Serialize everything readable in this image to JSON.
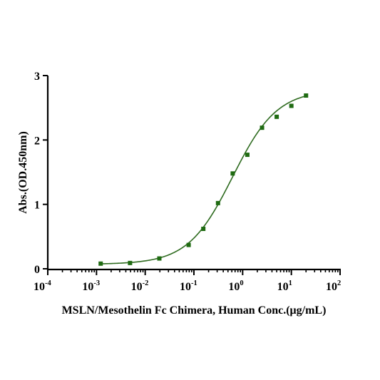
{
  "chart_data": {
    "type": "scatter",
    "xscale": "log10",
    "xlim": [
      0.0001,
      100
    ],
    "ylim": [
      0,
      3
    ],
    "xlabel": "MSLN/Mesothelin Fc Chimera, Human Conc.(μg/mL)",
    "ylabel": "Abs.(OD.450nm)",
    "y_ticks": [
      "0",
      "1",
      "2",
      "3"
    ],
    "x_ticks": [
      {
        "base": "10",
        "exp": "-4"
      },
      {
        "base": "10",
        "exp": "-3"
      },
      {
        "base": "10",
        "exp": "-2"
      },
      {
        "base": "10",
        "exp": "-1"
      },
      {
        "base": "10",
        "exp": "0"
      },
      {
        "base": "10",
        "exp": "1"
      },
      {
        "base": "10",
        "exp": "2"
      }
    ],
    "grid": false,
    "legend": "none",
    "points": [
      {
        "x": 0.00122,
        "y": 0.08
      },
      {
        "x": 0.00488,
        "y": 0.09
      },
      {
        "x": 0.0195,
        "y": 0.16
      },
      {
        "x": 0.078,
        "y": 0.37
      },
      {
        "x": 0.156,
        "y": 0.62
      },
      {
        "x": 0.3125,
        "y": 1.02
      },
      {
        "x": 0.625,
        "y": 1.48
      },
      {
        "x": 1.25,
        "y": 1.77
      },
      {
        "x": 2.5,
        "y": 2.19
      },
      {
        "x": 5,
        "y": 2.36
      },
      {
        "x": 10,
        "y": 2.53
      },
      {
        "x": 20,
        "y": 2.69
      }
    ],
    "fit": {
      "model": "4PL",
      "bottom": 0.07,
      "top": 2.78,
      "ec50": 0.62,
      "hill": 0.95,
      "x_range": [
        0.00122,
        20
      ]
    },
    "colors": {
      "point": "#1f6b12",
      "line": "#2e6b1f",
      "axis": "#000000"
    }
  }
}
